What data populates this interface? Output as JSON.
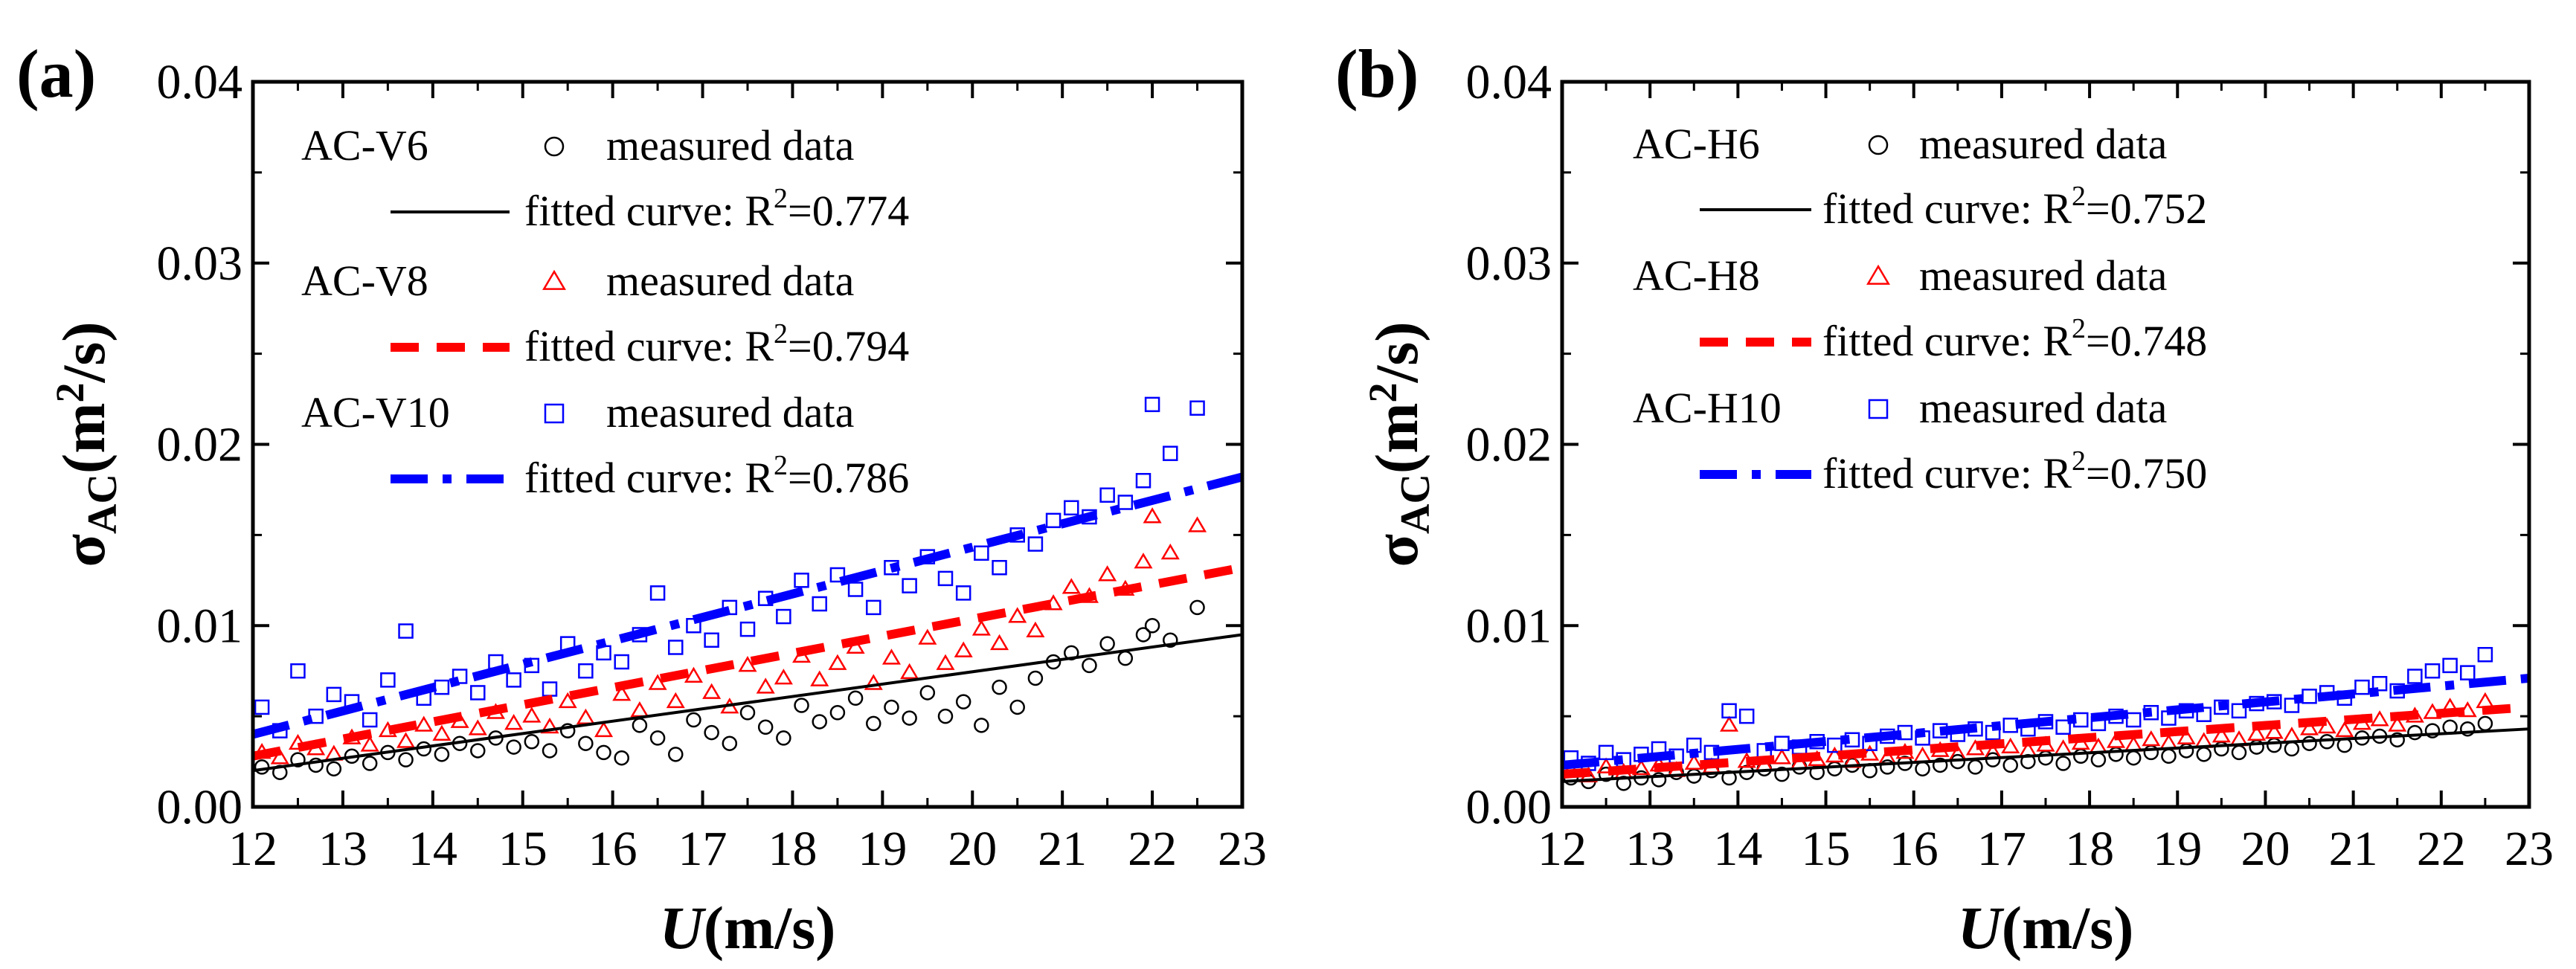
{
  "chart_data": [
    {
      "panel_label": "(a)",
      "type": "scatter",
      "xlabel_var": "U",
      "xlabel_unit": "(m/s)",
      "ylabel_sym": "σ",
      "ylabel_sub": "AC",
      "ylabel_unit_open": "(m",
      "ylabel_unit_sup": "2",
      "ylabel_unit_close": "/s)",
      "xlim": [
        12,
        23
      ],
      "ylim": [
        0,
        0.04
      ],
      "xticks": [
        "12",
        "13",
        "14",
        "15",
        "16",
        "17",
        "18",
        "19",
        "20",
        "21",
        "22",
        "23"
      ],
      "yticks": [
        "0.00",
        "0.01",
        "0.02",
        "0.03",
        "0.04"
      ],
      "series": [
        {
          "name": "AC-V6",
          "color": "#000000",
          "marker": "circle",
          "measured_label": "measured data",
          "fit_prefix": "fitted curve: R",
          "fit_sup": "2",
          "fit_value": "=0.774",
          "fit": {
            "y_at_12": 0.002,
            "y_at_23": 0.0095,
            "dash": "solid"
          },
          "x": [
            12.1,
            12.3,
            12.5,
            12.7,
            12.9,
            13.1,
            13.3,
            13.5,
            13.7,
            13.9,
            14.1,
            14.3,
            14.5,
            14.7,
            14.9,
            15.1,
            15.3,
            15.5,
            15.7,
            15.9,
            16.1,
            16.3,
            16.5,
            16.7,
            16.9,
            17.1,
            17.3,
            17.5,
            17.7,
            17.9,
            18.1,
            18.3,
            18.5,
            18.7,
            18.9,
            19.1,
            19.3,
            19.5,
            19.7,
            19.9,
            20.1,
            20.3,
            20.5,
            20.7,
            20.9,
            21.1,
            21.3,
            21.5,
            21.7,
            21.9,
            22.0,
            22.2,
            22.5
          ],
          "y": [
            0.0022,
            0.0019,
            0.0026,
            0.0023,
            0.0021,
            0.0028,
            0.0024,
            0.003,
            0.0026,
            0.0032,
            0.0029,
            0.0035,
            0.0031,
            0.0038,
            0.0033,
            0.0036,
            0.0031,
            0.0042,
            0.0035,
            0.003,
            0.0027,
            0.0045,
            0.0038,
            0.0029,
            0.0048,
            0.0041,
            0.0035,
            0.0052,
            0.0044,
            0.0038,
            0.0056,
            0.0047,
            0.0052,
            0.006,
            0.0046,
            0.0055,
            0.0049,
            0.0063,
            0.005,
            0.0058,
            0.0045,
            0.0066,
            0.0055,
            0.0071,
            0.008,
            0.0085,
            0.0078,
            0.009,
            0.0082,
            0.0095,
            0.01,
            0.0092,
            0.011
          ]
        },
        {
          "name": "AC-V8",
          "color": "#ff0000",
          "marker": "triangle",
          "measured_label": "measured data",
          "fit_prefix": "fitted curve: R",
          "fit_sup": "2",
          "fit_value": "=0.794",
          "fit": {
            "y_at_12": 0.0028,
            "y_at_23": 0.0132,
            "dash": "dash"
          },
          "x": [
            12.1,
            12.3,
            12.5,
            12.7,
            12.9,
            13.1,
            13.3,
            13.5,
            13.7,
            13.9,
            14.1,
            14.3,
            14.5,
            14.7,
            14.9,
            15.1,
            15.3,
            15.5,
            15.7,
            15.9,
            16.1,
            16.3,
            16.5,
            16.7,
            16.9,
            17.1,
            17.3,
            17.5,
            17.7,
            17.9,
            18.1,
            18.3,
            18.5,
            18.7,
            18.9,
            19.1,
            19.3,
            19.5,
            19.7,
            19.9,
            20.1,
            20.3,
            20.5,
            20.7,
            20.9,
            21.1,
            21.3,
            21.5,
            21.7,
            21.9,
            22.0,
            22.2,
            22.5
          ],
          "y": [
            0.003,
            0.0027,
            0.0035,
            0.0032,
            0.0029,
            0.0038,
            0.0034,
            0.0042,
            0.0036,
            0.0045,
            0.004,
            0.0047,
            0.0043,
            0.0052,
            0.0046,
            0.005,
            0.0044,
            0.0058,
            0.0049,
            0.0042,
            0.0062,
            0.0053,
            0.0068,
            0.0058,
            0.0072,
            0.0063,
            0.0055,
            0.0078,
            0.0066,
            0.0071,
            0.0083,
            0.007,
            0.0079,
            0.0088,
            0.0068,
            0.0082,
            0.0074,
            0.0093,
            0.0079,
            0.0086,
            0.0098,
            0.009,
            0.0105,
            0.0097,
            0.0112,
            0.0121,
            0.0116,
            0.0128,
            0.012,
            0.0135,
            0.016,
            0.014,
            0.0155
          ]
        },
        {
          "name": "AC-V10",
          "color": "#0000ff",
          "marker": "square",
          "measured_label": "measured data",
          "fit_prefix": "fitted curve: R",
          "fit_sup": "2",
          "fit_value": "=0.786",
          "fit": {
            "y_at_12": 0.004,
            "y_at_23": 0.0182,
            "dash": "dashdot"
          },
          "x": [
            12.1,
            12.3,
            12.5,
            12.7,
            12.9,
            13.1,
            13.3,
            13.5,
            13.7,
            13.9,
            14.1,
            14.3,
            14.5,
            14.7,
            14.9,
            15.1,
            15.3,
            15.5,
            15.7,
            15.9,
            16.1,
            16.3,
            16.5,
            16.7,
            16.9,
            17.1,
            17.3,
            17.5,
            17.7,
            17.9,
            18.1,
            18.3,
            18.5,
            18.7,
            18.9,
            19.1,
            19.3,
            19.5,
            19.7,
            19.9,
            20.1,
            20.3,
            20.5,
            20.7,
            20.9,
            21.1,
            21.3,
            21.5,
            21.7,
            21.9,
            22.0,
            22.2,
            22.5
          ],
          "y": [
            0.0055,
            0.0042,
            0.0075,
            0.005,
            0.0062,
            0.0058,
            0.0048,
            0.007,
            0.0097,
            0.006,
            0.0066,
            0.0072,
            0.0063,
            0.008,
            0.007,
            0.0078,
            0.0065,
            0.009,
            0.0075,
            0.0085,
            0.008,
            0.0095,
            0.0118,
            0.0088,
            0.01,
            0.0092,
            0.011,
            0.0098,
            0.0115,
            0.0105,
            0.0125,
            0.0112,
            0.0128,
            0.012,
            0.011,
            0.0132,
            0.0122,
            0.0138,
            0.0126,
            0.0118,
            0.014,
            0.0132,
            0.015,
            0.0145,
            0.0158,
            0.0165,
            0.016,
            0.0172,
            0.0168,
            0.018,
            0.0222,
            0.0195,
            0.022
          ]
        }
      ]
    },
    {
      "panel_label": "(b)",
      "type": "scatter",
      "xlabel_var": "U",
      "xlabel_unit": "(m/s)",
      "ylabel_sym": "σ",
      "ylabel_sub": "AC",
      "ylabel_unit_open": "(m",
      "ylabel_unit_sup": "2",
      "ylabel_unit_close": "/s)",
      "xlim": [
        12,
        23
      ],
      "ylim": [
        0,
        0.04
      ],
      "xticks": [
        "12",
        "13",
        "14",
        "15",
        "16",
        "17",
        "18",
        "19",
        "20",
        "21",
        "22",
        "23"
      ],
      "yticks": [
        "0.00",
        "0.01",
        "0.02",
        "0.03",
        "0.04"
      ],
      "series": [
        {
          "name": "AC-H6",
          "color": "#000000",
          "marker": "circle",
          "measured_label": "measured data",
          "fit_prefix": "fitted curve: R",
          "fit_sup": "2",
          "fit_value": "=0.752",
          "fit": {
            "y_at_12": 0.0014,
            "y_at_23": 0.0043,
            "dash": "solid"
          },
          "x": [
            12.1,
            12.3,
            12.5,
            12.7,
            12.9,
            13.1,
            13.3,
            13.5,
            13.7,
            13.9,
            14.1,
            14.3,
            14.5,
            14.7,
            14.9,
            15.1,
            15.3,
            15.5,
            15.7,
            15.9,
            16.1,
            16.3,
            16.5,
            16.7,
            16.9,
            17.1,
            17.3,
            17.5,
            17.7,
            17.9,
            18.1,
            18.3,
            18.5,
            18.7,
            18.9,
            19.1,
            19.3,
            19.5,
            19.7,
            19.9,
            20.1,
            20.3,
            20.5,
            20.7,
            20.9,
            21.1,
            21.3,
            21.5,
            21.7,
            21.9,
            22.1,
            22.3,
            22.5
          ],
          "y": [
            0.0016,
            0.0014,
            0.0018,
            0.0013,
            0.0016,
            0.0015,
            0.0019,
            0.0017,
            0.002,
            0.0016,
            0.0019,
            0.0021,
            0.0018,
            0.0022,
            0.0019,
            0.0021,
            0.0023,
            0.002,
            0.0022,
            0.0024,
            0.0021,
            0.0023,
            0.0025,
            0.0022,
            0.0026,
            0.0023,
            0.0025,
            0.0027,
            0.0024,
            0.0028,
            0.0026,
            0.0029,
            0.0027,
            0.003,
            0.0028,
            0.0031,
            0.0029,
            0.0032,
            0.003,
            0.0033,
            0.0034,
            0.0032,
            0.0035,
            0.0036,
            0.0034,
            0.0038,
            0.0039,
            0.0037,
            0.0041,
            0.0042,
            0.0044,
            0.0043,
            0.0046
          ]
        },
        {
          "name": "AC-H8",
          "color": "#ff0000",
          "marker": "triangle",
          "measured_label": "measured data",
          "fit_prefix": "fitted curve: R",
          "fit_sup": "2",
          "fit_value": "=0.748",
          "fit": {
            "y_at_12": 0.0018,
            "y_at_23": 0.0055,
            "dash": "dash"
          },
          "x": [
            12.1,
            12.3,
            12.5,
            12.7,
            12.9,
            13.1,
            13.3,
            13.5,
            13.7,
            13.9,
            14.1,
            14.3,
            14.5,
            14.7,
            14.9,
            15.1,
            15.3,
            15.5,
            15.7,
            15.9,
            16.1,
            16.3,
            16.5,
            16.7,
            16.9,
            17.1,
            17.3,
            17.5,
            17.7,
            17.9,
            18.1,
            18.3,
            18.5,
            18.7,
            18.9,
            19.1,
            19.3,
            19.5,
            19.7,
            19.9,
            20.1,
            20.3,
            20.5,
            20.7,
            20.9,
            21.1,
            21.3,
            21.5,
            21.7,
            21.9,
            22.1,
            22.3,
            22.5
          ],
          "y": [
            0.002,
            0.0017,
            0.0022,
            0.0019,
            0.0021,
            0.0023,
            0.002,
            0.0024,
            0.0022,
            0.0045,
            0.0025,
            0.0023,
            0.0027,
            0.0024,
            0.0026,
            0.0028,
            0.0025,
            0.0029,
            0.0027,
            0.003,
            0.0028,
            0.0031,
            0.0029,
            0.0032,
            0.003,
            0.0033,
            0.0031,
            0.0034,
            0.0032,
            0.0035,
            0.0033,
            0.0036,
            0.0034,
            0.0037,
            0.0035,
            0.0038,
            0.0036,
            0.0039,
            0.0037,
            0.004,
            0.0041,
            0.0039,
            0.0043,
            0.0044,
            0.0042,
            0.0046,
            0.0048,
            0.0045,
            0.005,
            0.0052,
            0.0055,
            0.0053,
            0.0058
          ]
        },
        {
          "name": "AC-H10",
          "color": "#0000ff",
          "marker": "square",
          "measured_label": "measured data",
          "fit_prefix": "fitted curve: R",
          "fit_sup": "2",
          "fit_value": "=0.750",
          "fit": {
            "y_at_12": 0.0023,
            "y_at_23": 0.0071,
            "dash": "dashdot"
          },
          "x": [
            12.1,
            12.3,
            12.5,
            12.7,
            12.9,
            13.1,
            13.3,
            13.5,
            13.7,
            13.9,
            14.1,
            14.3,
            14.5,
            14.7,
            14.9,
            15.1,
            15.3,
            15.5,
            15.7,
            15.9,
            16.1,
            16.3,
            16.5,
            16.7,
            16.9,
            17.1,
            17.3,
            17.5,
            17.7,
            17.9,
            18.1,
            18.3,
            18.5,
            18.7,
            18.9,
            19.1,
            19.3,
            19.5,
            19.7,
            19.9,
            20.1,
            20.3,
            20.5,
            20.7,
            20.9,
            21.1,
            21.3,
            21.5,
            21.7,
            21.9,
            22.1,
            22.3,
            22.5
          ],
          "y": [
            0.0027,
            0.0024,
            0.003,
            0.0026,
            0.0029,
            0.0032,
            0.0028,
            0.0034,
            0.003,
            0.0053,
            0.005,
            0.0031,
            0.0035,
            0.0033,
            0.0036,
            0.0034,
            0.0037,
            0.0035,
            0.0039,
            0.0041,
            0.0038,
            0.0042,
            0.004,
            0.0043,
            0.0041,
            0.0045,
            0.0043,
            0.0047,
            0.0044,
            0.0048,
            0.0046,
            0.005,
            0.0048,
            0.0052,
            0.0049,
            0.0053,
            0.0051,
            0.0055,
            0.0053,
            0.0057,
            0.0058,
            0.0056,
            0.0061,
            0.0063,
            0.006,
            0.0066,
            0.0068,
            0.0064,
            0.0072,
            0.0075,
            0.0078,
            0.0074,
            0.0084
          ]
        }
      ]
    }
  ]
}
